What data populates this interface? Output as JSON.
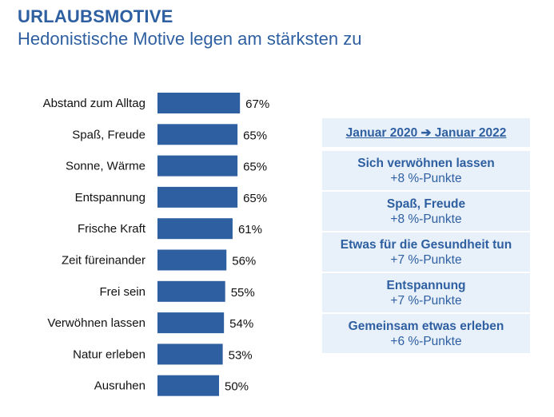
{
  "header": {
    "title": "URLAUBSMOTIVE",
    "subtitle": "Hedonistische Motive legen am stärksten zu"
  },
  "chart_data": {
    "type": "bar",
    "orientation": "horizontal",
    "title": "URLAUBSMOTIVE",
    "subtitle": "Hedonistische Motive legen am stärksten zu",
    "xlabel": "",
    "ylabel": "",
    "unit": "%",
    "grid": false,
    "xlim": [
      0,
      100
    ],
    "bar_color": "#2e5fa1",
    "categories": [
      "Abstand zum Alltag",
      "Spaß, Freude",
      "Sonne, Wärme",
      "Entspannung",
      "Frische Kraft",
      "Zeit füreinander",
      "Frei sein",
      "Verwöhnen lassen",
      "Natur erleben",
      "Ausruhen"
    ],
    "values": [
      67,
      65,
      65,
      65,
      61,
      56,
      55,
      54,
      53,
      50
    ],
    "value_labels": [
      "67%",
      "65%",
      "65%",
      "65%",
      "61%",
      "56%",
      "55%",
      "54%",
      "53%",
      "50%"
    ]
  },
  "panel": {
    "header": "Januar 2020 ➔ Januar 2022",
    "items": [
      {
        "name": "Sich verwöhnen lassen",
        "delta": "+8 %-Punkte"
      },
      {
        "name": "Spaß, Freude",
        "delta": "+8 %-Punkte"
      },
      {
        "name": "Etwas für die Gesundheit tun",
        "delta": "+7 %-Punkte"
      },
      {
        "name": "Entspannung",
        "delta": "+7 %-Punkte"
      },
      {
        "name": "Gemeinsam etwas erleben",
        "delta": "+6 %-Punkte"
      }
    ]
  },
  "colors": {
    "accent": "#2e5fa1",
    "panel_bg": "#e8f0fa"
  }
}
